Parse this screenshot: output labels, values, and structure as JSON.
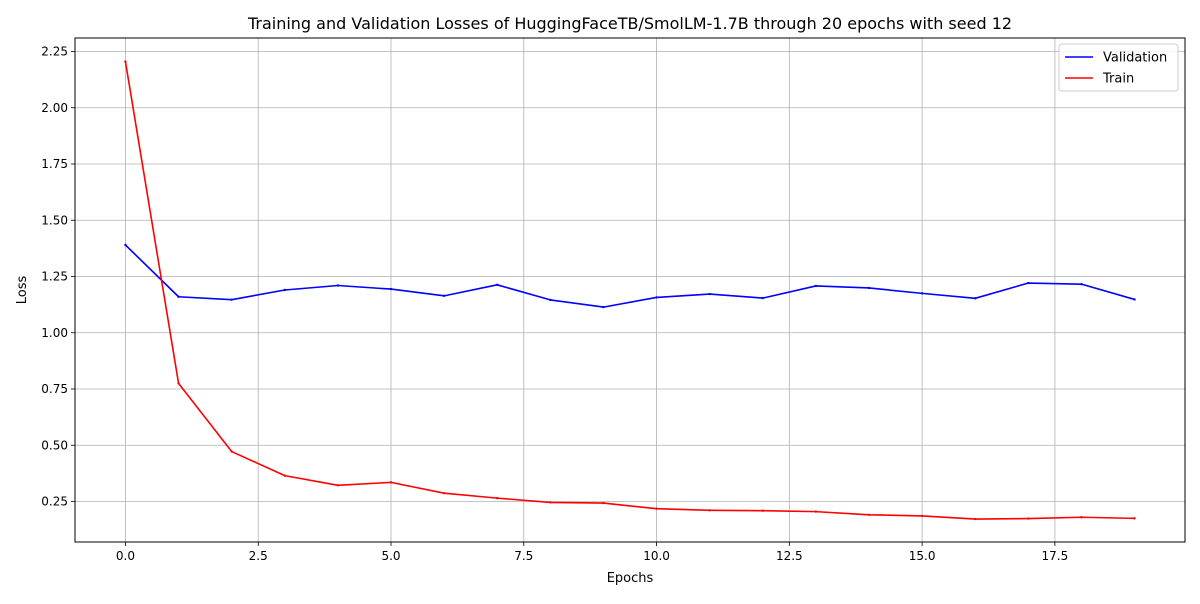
{
  "chart_data": {
    "type": "line",
    "title": "Training and Validation Losses of HuggingFaceTB/SmolLM-1.7B through 20 epochs with seed 12",
    "xlabel": "Epochs",
    "ylabel": "Loss",
    "xlim": [
      -0.95,
      19.95
    ],
    "ylim": [
      0.07,
      2.31
    ],
    "xticks": [
      0.0,
      2.5,
      5.0,
      7.5,
      10.0,
      12.5,
      15.0,
      17.5
    ],
    "xtick_labels": [
      "0.0",
      "2.5",
      "5.0",
      "7.5",
      "10.0",
      "12.5",
      "15.0",
      "17.5"
    ],
    "yticks": [
      0.25,
      0.5,
      0.75,
      1.0,
      1.25,
      1.5,
      1.75,
      2.0,
      2.25
    ],
    "ytick_labels": [
      "0.25",
      "0.50",
      "0.75",
      "1.00",
      "1.25",
      "1.50",
      "1.75",
      "2.00",
      "2.25"
    ],
    "grid": true,
    "legend_position": "top-right",
    "x": [
      0,
      1,
      2,
      3,
      4,
      5,
      6,
      7,
      8,
      9,
      10,
      11,
      12,
      13,
      14,
      15,
      16,
      17,
      18,
      19
    ],
    "series": [
      {
        "name": "Validation",
        "color": "#0000ff",
        "values": [
          1.39,
          1.16,
          1.147,
          1.19,
          1.21,
          1.194,
          1.164,
          1.213,
          1.146,
          1.114,
          1.157,
          1.172,
          1.154,
          1.208,
          1.199,
          1.175,
          1.153,
          1.221,
          1.216,
          1.148
        ]
      },
      {
        "name": "Train",
        "color": "#ff0000",
        "values": [
          2.205,
          0.775,
          0.472,
          0.365,
          0.322,
          0.335,
          0.287,
          0.265,
          0.246,
          0.243,
          0.218,
          0.211,
          0.209,
          0.205,
          0.191,
          0.186,
          0.172,
          0.174,
          0.18,
          0.175
        ]
      }
    ]
  }
}
